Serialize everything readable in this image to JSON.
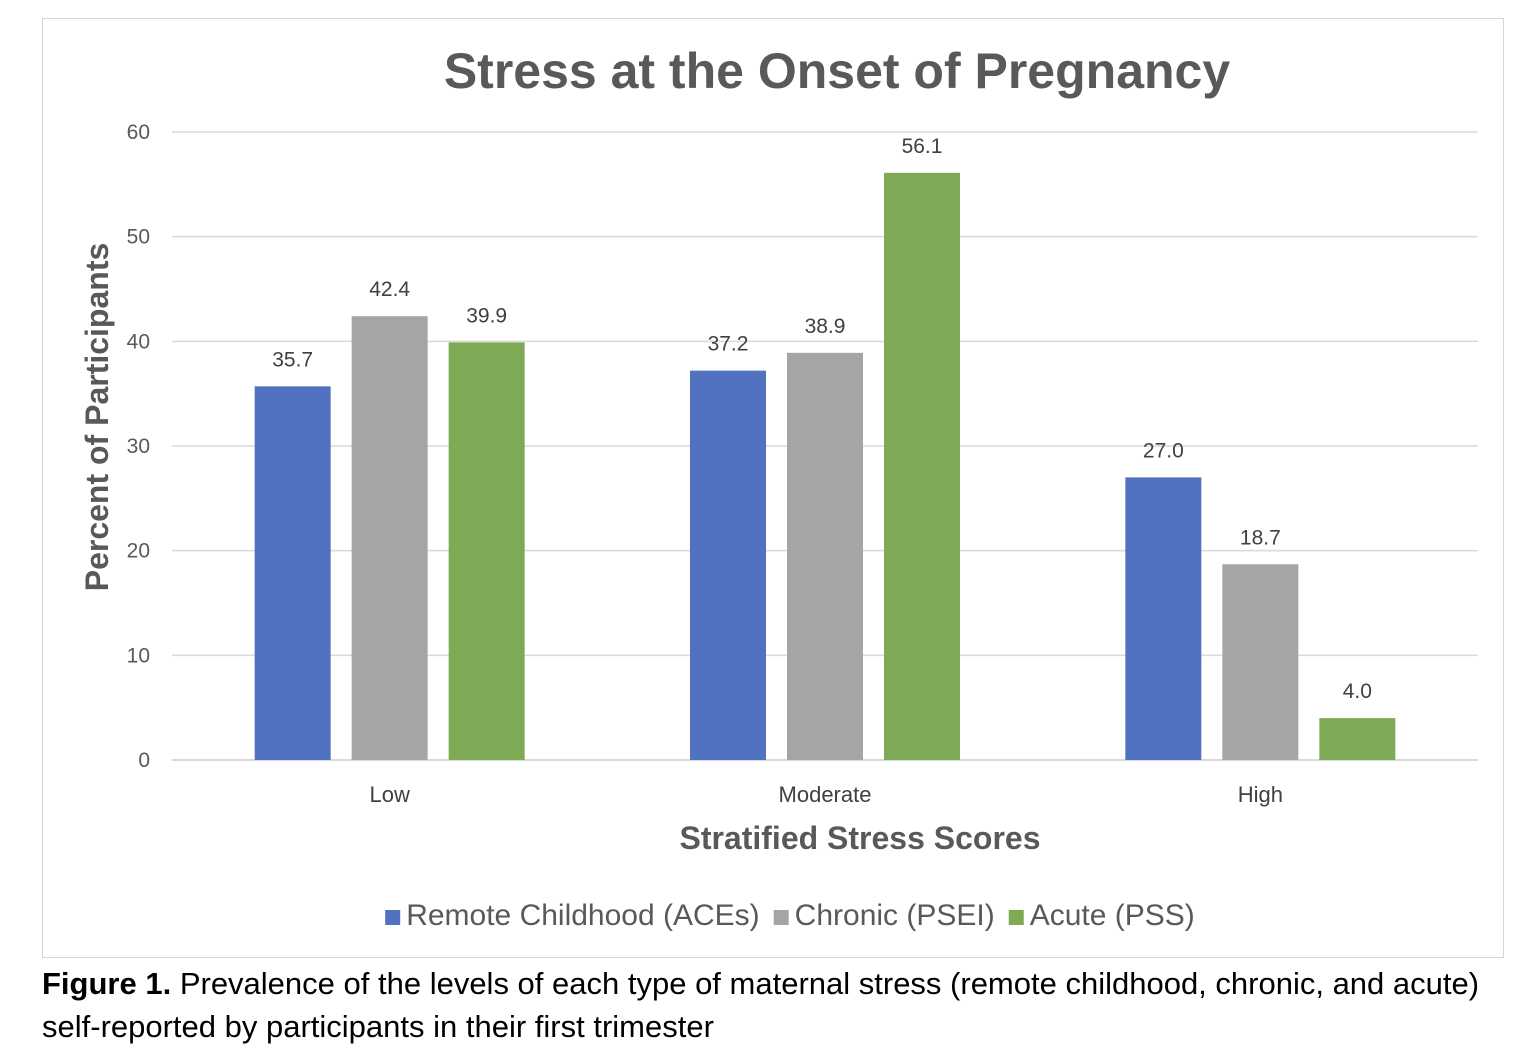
{
  "chart_data": {
    "type": "bar",
    "title": "Stress at the Onset of Pregnancy",
    "xlabel": "Stratified Stress Scores",
    "ylabel": "Percent of Participants",
    "categories": [
      "Low",
      "Moderate",
      "High"
    ],
    "series": [
      {
        "name": "Remote Childhood (ACEs)",
        "values": [
          35.7,
          37.2,
          27.0
        ],
        "color": "#5072c0"
      },
      {
        "name": "Chronic (PSEI)",
        "values": [
          42.4,
          38.9,
          18.7
        ],
        "color": "#a5a5a5"
      },
      {
        "name": "Acute (PSS)",
        "values": [
          39.9,
          56.1,
          4.0
        ],
        "color": "#7ea955"
      }
    ],
    "ylim": [
      0,
      60
    ],
    "yticks": [
      0,
      10,
      20,
      30,
      40,
      50,
      60
    ],
    "value_decimals": 1,
    "grid": true,
    "legend_position": "bottom"
  },
  "caption": {
    "label": "Figure 1.",
    "text": " Prevalence of the levels of each type of maternal stress (remote childhood, chronic, and acute) self-reported by participants in their first trimester"
  }
}
